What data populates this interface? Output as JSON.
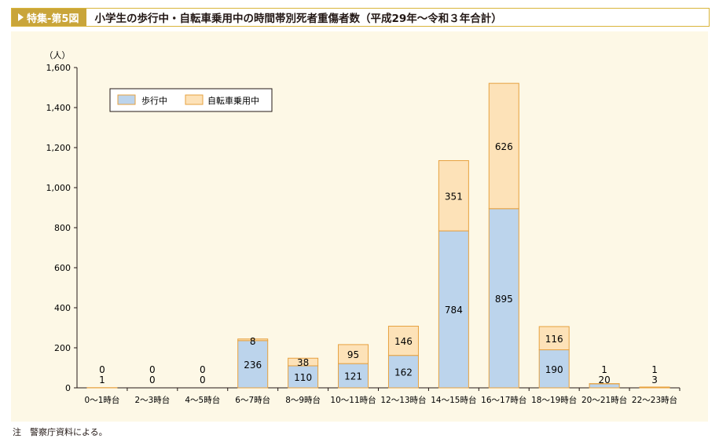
{
  "header": {
    "badge": "特集-第5図",
    "title": "小学生の歩行中・自転車乗用中の時間帯別死者重傷者数（平成29年～令和３年合計）"
  },
  "note": "注　警察庁資料による。",
  "colors": {
    "walking": "#bcd4ec",
    "cycling": "#fde2b8",
    "bar_border": "#e6a13f",
    "badge": "#c9a53a",
    "panel": "#fdf8e6"
  },
  "chart_data": {
    "type": "bar",
    "stacked": true,
    "y_unit": "（人）",
    "ylim": [
      0,
      1600
    ],
    "yticks": [
      0,
      200,
      400,
      600,
      800,
      1000,
      1200,
      1400,
      1600
    ],
    "ytick_labels": [
      "0",
      "200",
      "400",
      "600",
      "800",
      "1,000",
      "1,200",
      "1,400",
      "1,600"
    ],
    "categories": [
      "0～1時台",
      "2～3時台",
      "4～5時台",
      "6～7時台",
      "8～9時台",
      "10～11時台",
      "12～13時台",
      "14～15時台",
      "16～17時台",
      "18～19時台",
      "20～21時台",
      "22～23時台"
    ],
    "series": [
      {
        "name": "歩行中",
        "values": [
          1,
          0,
          0,
          236,
          110,
          121,
          162,
          784,
          895,
          190,
          20,
          3
        ]
      },
      {
        "name": "自転車乗用中",
        "values": [
          0,
          0,
          0,
          8,
          38,
          95,
          146,
          351,
          626,
          116,
          1,
          1
        ]
      }
    ],
    "legend_position": "top-left",
    "grid": false
  }
}
